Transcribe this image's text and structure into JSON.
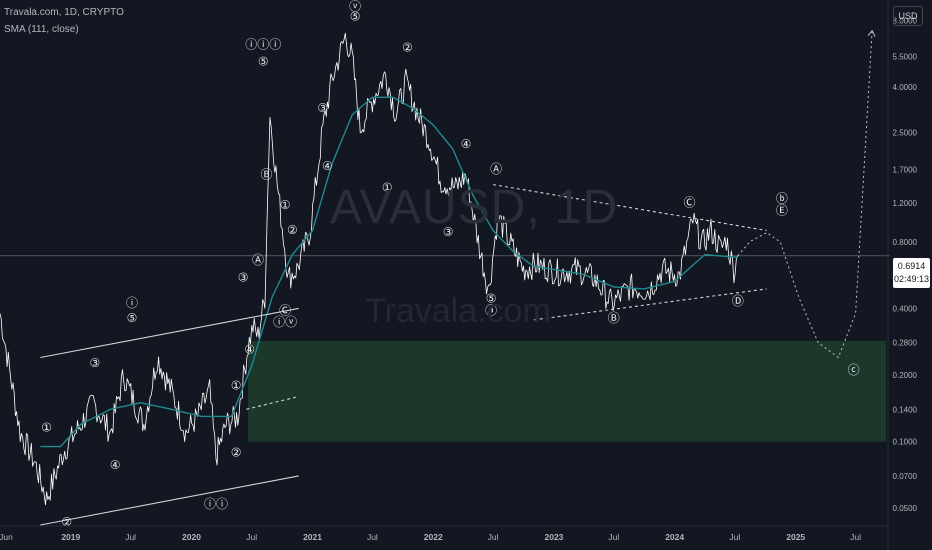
{
  "header": {
    "symbol_line": "Travala.com, 1D, CRYPTO",
    "indicator_line": "SMA (111, close)"
  },
  "watermark": {
    "ticker": "AVAUSD, 1D",
    "brand": "Travala.com"
  },
  "currency_button": "USD",
  "last_price": {
    "value": "0.6914",
    "countdown": "02:49:13"
  },
  "colors": {
    "background": "#131722",
    "price": "#ffffff",
    "sma": "#1f8a8f",
    "zone": "#1b3a2c",
    "grid_text": "#b2b5be"
  },
  "chart_data": {
    "type": "line",
    "y_scale": "log",
    "ylim": [
      0.042,
      9.5
    ],
    "y_ticks": [
      "8.0000",
      "5.5000",
      "4.0000",
      "2.5000",
      "1.7000",
      "1.2000",
      "0.8000",
      "0.5500",
      "0.4000",
      "0.2800",
      "0.2000",
      "0.1400",
      "0.1000",
      "0.0700",
      "0.0500"
    ],
    "x_ticks": [
      "Jun",
      "2019",
      "Jul",
      "2020",
      "Jul",
      "2021",
      "Jul",
      "2022",
      "Jul",
      "2023",
      "Jul",
      "2024",
      "Jul",
      "2025",
      "Jul"
    ],
    "series": [
      {
        "role": "price",
        "x": [
          "2018-06-01",
          "2018-08-01",
          "2018-09-15",
          "2018-10-20",
          "2018-12-10",
          "2019-02-01",
          "2019-03-10",
          "2019-05-01",
          "2019-06-10",
          "2019-07-05",
          "2019-08-10",
          "2019-09-20",
          "2019-11-01",
          "2019-12-15",
          "2020-01-20",
          "2020-02-25",
          "2020-03-15",
          "2020-04-15",
          "2020-05-20",
          "2020-06-20",
          "2020-07-05",
          "2020-07-20",
          "2020-08-10",
          "2020-08-25",
          "2020-09-20",
          "2020-10-20",
          "2020-11-15",
          "2020-12-25",
          "2021-02-01",
          "2021-03-01",
          "2021-04-10",
          "2021-05-01",
          "2021-05-25",
          "2021-07-01",
          "2021-08-10",
          "2021-09-10",
          "2021-10-10",
          "2021-11-20",
          "2021-12-20",
          "2022-01-25",
          "2022-03-10",
          "2022-04-10",
          "2022-05-25",
          "2022-06-18",
          "2022-07-15",
          "2022-08-20",
          "2022-10-01",
          "2022-11-10",
          "2023-01-15",
          "2023-03-10",
          "2023-05-01",
          "2023-06-25",
          "2023-08-20",
          "2023-10-15",
          "2023-11-25",
          "2024-01-15",
          "2024-02-25",
          "2024-03-25",
          "2024-04-20",
          "2024-05-20",
          "2024-06-05",
          "2024-06-28",
          "2024-07-10"
        ],
        "values": [
          0.38,
          0.11,
          0.08,
          0.055,
          0.09,
          0.12,
          0.15,
          0.11,
          0.2,
          0.16,
          0.12,
          0.24,
          0.17,
          0.11,
          0.13,
          0.17,
          0.085,
          0.12,
          0.13,
          0.27,
          0.33,
          0.3,
          0.45,
          3.0,
          1.3,
          0.55,
          0.6,
          0.9,
          2.6,
          4.3,
          6.8,
          5.4,
          2.6,
          3.5,
          4.6,
          3.0,
          4.2,
          2.9,
          2.3,
          1.5,
          1.4,
          1.6,
          0.7,
          0.48,
          1.05,
          0.8,
          0.6,
          0.63,
          0.58,
          0.6,
          0.55,
          0.42,
          0.5,
          0.48,
          0.6,
          0.56,
          1.0,
          0.78,
          0.9,
          0.74,
          0.82,
          0.6,
          0.6914
        ]
      },
      {
        "role": "sma",
        "name": "SMA (111, close)",
        "x": [
          "2018-10-01",
          "2018-12-01",
          "2019-02-01",
          "2019-05-01",
          "2019-08-01",
          "2019-11-01",
          "2020-02-01",
          "2020-05-01",
          "2020-07-01",
          "2020-09-01",
          "2020-11-01",
          "2021-01-01",
          "2021-03-01",
          "2021-05-01",
          "2021-07-01",
          "2021-09-01",
          "2021-11-01",
          "2022-01-01",
          "2022-03-01",
          "2022-05-01",
          "2022-07-01",
          "2022-09-01",
          "2022-11-01",
          "2023-01-01",
          "2023-04-01",
          "2023-07-01",
          "2023-10-01",
          "2024-01-01",
          "2024-04-01",
          "2024-07-10"
        ],
        "values": [
          0.095,
          0.095,
          0.12,
          0.14,
          0.15,
          0.14,
          0.13,
          0.13,
          0.22,
          0.45,
          0.7,
          0.9,
          1.8,
          3.0,
          3.6,
          3.6,
          3.2,
          2.7,
          2.1,
          1.3,
          0.9,
          0.72,
          0.62,
          0.6,
          0.57,
          0.5,
          0.49,
          0.53,
          0.7,
          0.68
        ]
      }
    ],
    "projection": {
      "x": [
        "2024-07-10",
        "2024-08-15",
        "2024-10-05",
        "2024-11-15",
        "2025-01-10",
        "2025-03-10",
        "2025-05-10",
        "2025-07-01",
        "2025-08-20"
      ],
      "values": [
        0.6914,
        0.8,
        0.88,
        0.8,
        0.45,
        0.28,
        0.24,
        0.38,
        7.2
      ]
    },
    "zone": {
      "x_start": "2020-06-20",
      "x_end": "2025-10-01",
      "y_low": 0.1,
      "y_high": 0.285
    },
    "trendlines": [
      {
        "style": "solid",
        "x": [
          "2018-10-01",
          "2020-11-20"
        ],
        "values": [
          0.24,
          0.4
        ]
      },
      {
        "style": "solid",
        "x": [
          "2018-10-01",
          "2020-11-20"
        ],
        "values": [
          0.042,
          0.07
        ]
      },
      {
        "style": "dashed",
        "x": [
          "2020-06-15",
          "2020-11-20"
        ],
        "values": [
          0.14,
          0.16
        ]
      },
      {
        "style": "dashed",
        "x": [
          "2022-07-01",
          "2024-10-05"
        ],
        "values": [
          1.45,
          0.9
        ]
      },
      {
        "style": "dashed",
        "x": [
          "2022-11-01",
          "2024-10-05"
        ],
        "values": [
          0.355,
          0.49
        ]
      }
    ],
    "annotations": [
      {
        "text": "①",
        "x": "2018-10-20",
        "y": 0.115
      },
      {
        "text": "②",
        "x": "2018-12-20",
        "y": 0.043
      },
      {
        "text": "③",
        "x": "2019-03-15",
        "y": 0.225
      },
      {
        "text": "④",
        "x": "2019-05-15",
        "y": 0.078
      },
      {
        "text": "⑤",
        "x": "2019-07-05",
        "y": 0.36
      },
      {
        "text": "ⓘ",
        "x": "2019-07-05",
        "y": 0.42
      },
      {
        "text": "①",
        "x": "2020-05-15",
        "y": 0.178
      },
      {
        "text": "②",
        "x": "2020-05-15",
        "y": 0.089
      },
      {
        "text": "ⓘⓘ",
        "x": "2020-03-15",
        "y": 0.052
      },
      {
        "text": "③",
        "x": "2020-06-05",
        "y": 0.55
      },
      {
        "text": "④",
        "x": "2020-06-25",
        "y": 0.26
      },
      {
        "text": "Ⓐ",
        "x": "2020-07-20",
        "y": 0.66
      },
      {
        "text": "Ⓑ",
        "x": "2020-08-15",
        "y": 1.6
      },
      {
        "text": "ⓘⓘⓘ",
        "x": "2020-08-05",
        "y": 6.2
      },
      {
        "text": "⑤",
        "x": "2020-08-05",
        "y": 5.2
      },
      {
        "text": "①",
        "x": "2020-10-10",
        "y": 1.17
      },
      {
        "text": "②",
        "x": "2020-11-01",
        "y": 0.9
      },
      {
        "text": "Ⓒ",
        "x": "2020-10-10",
        "y": 0.39
      },
      {
        "text": "ⓘⓥ",
        "x": "2020-10-10",
        "y": 0.345
      },
      {
        "text": "③",
        "x": "2021-02-01",
        "y": 3.2
      },
      {
        "text": "④",
        "x": "2021-02-15",
        "y": 1.75
      },
      {
        "text": "ⓥ",
        "x": "2021-05-10",
        "y": 9.2
      },
      {
        "text": "⑤",
        "x": "2021-05-10",
        "y": 8.3
      },
      {
        "text": "①",
        "x": "2021-08-15",
        "y": 1.4
      },
      {
        "text": "②",
        "x": "2021-10-15",
        "y": 6.0
      },
      {
        "text": "③",
        "x": "2022-02-15",
        "y": 0.88
      },
      {
        "text": "④",
        "x": "2022-04-10",
        "y": 2.2
      },
      {
        "text": "Ⓐ",
        "x": "2022-07-10",
        "y": 1.7
      },
      {
        "text": "⑤",
        "x": "2022-06-25",
        "y": 0.44
      },
      {
        "text": "ⓐ",
        "x": "2022-06-25",
        "y": 0.39
      },
      {
        "text": "Ⓑ",
        "x": "2023-07-01",
        "y": 0.36
      },
      {
        "text": "Ⓒ",
        "x": "2024-02-15",
        "y": 1.2
      },
      {
        "text": "Ⓓ",
        "x": "2024-07-10",
        "y": 0.43
      },
      {
        "text": "Ⓔ",
        "x": "2024-11-20",
        "y": 1.1
      },
      {
        "text": "ⓑ",
        "x": "2024-11-20",
        "y": 1.25
      },
      {
        "text": "ⓒ",
        "x": "2025-06-25",
        "y": 0.21
      }
    ]
  }
}
